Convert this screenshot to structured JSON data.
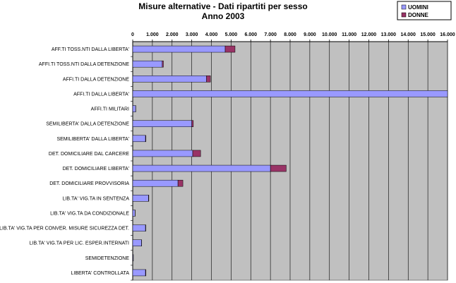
{
  "chart_data": {
    "type": "bar",
    "orientation": "horizontal",
    "stacked": true,
    "title": "Misure alternative - Dati ripartiti per sesso",
    "subtitle": "Anno  2003",
    "xlim": [
      0,
      16000
    ],
    "x_ticks": [
      "0",
      "1.000",
      "2.000",
      "3.000",
      "4.000",
      "5.000",
      "6.000",
      "7.000",
      "8.000",
      "9.000",
      "10.000",
      "11.000",
      "12.000",
      "13.000",
      "14.000",
      "15.000",
      "16.000"
    ],
    "categories": [
      "AFF.TI TOSS.NTI  DALLA LIBERTA'",
      "AFFI.TI TOSS.NTI  DALLA DETENZIONE",
      "AFFI.TI DALLA DETENZIONE",
      "AFFI.TI DALLA LIBERTA'",
      "AFFI.TI MILITARI",
      "SEMILIBERTA' DALLA DETENZIONE",
      "SEMILIBERTA' DALLA LIBERTA'",
      "DET. DOMICILIARE DAL CARCERE",
      "DET. DOMICILIARE LIBERTA'",
      "DET. DOMICILIARE PROVVISORIA",
      "LIB.TA'  VIG.TA IN SENTENZA",
      "LIB.TA' VIG.TA DA CONDIZIONALE",
      "LIB.TA' VIG.TA PER CONVER. MISURE SICUREZZA DET.",
      "LIB.TA' VIG.TA  PER LIC. ESPER.INTERNATI",
      "SEMIDETENZIONE",
      "LIBERTA' CONTROLLATA"
    ],
    "series": [
      {
        "name": "UOMINI",
        "color": "#9999ff",
        "values": [
          4700,
          1500,
          3750,
          16200,
          150,
          3000,
          650,
          3050,
          7000,
          2300,
          800,
          120,
          650,
          450,
          30,
          650
        ]
      },
      {
        "name": "DONNE",
        "color": "#993366",
        "values": [
          500,
          60,
          200,
          50,
          5,
          80,
          20,
          400,
          800,
          250,
          20,
          5,
          15,
          5,
          2,
          20
        ]
      }
    ],
    "grid": true,
    "legend_position": "top-right",
    "plot_background": "#c0c0c0"
  }
}
